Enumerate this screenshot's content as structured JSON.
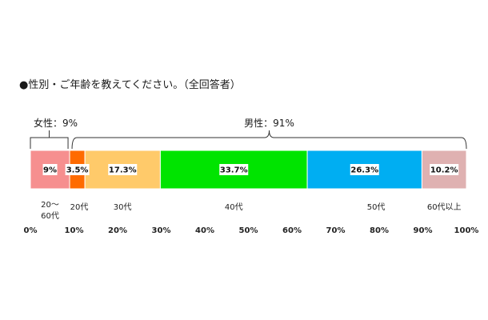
{
  "chart_data": {
    "type": "bar",
    "orientation": "horizontal-stacked",
    "title": "●性別・ご年齢を教えてください。（全回答者）",
    "groups": [
      {
        "label": "女性：9%",
        "from": 0,
        "to": 9
      },
      {
        "label": "男性：91%",
        "from": 9,
        "to": 100
      }
    ],
    "segments": [
      {
        "category": "20～60代",
        "value": 9,
        "label": "9%",
        "color": "#f68f8f"
      },
      {
        "category": "20代",
        "value": 3.5,
        "label": "3.5%",
        "color": "#ff6b00"
      },
      {
        "category": "30代",
        "value": 17.3,
        "label": "17.3%",
        "color": "#ffca6a"
      },
      {
        "category": "40代",
        "value": 33.7,
        "label": "33.7%",
        "color": "#00e400"
      },
      {
        "category": "50代",
        "value": 26.3,
        "label": "26.3%",
        "color": "#00aef2"
      },
      {
        "category": "60代以上",
        "value": 10.2,
        "label": "10.2%",
        "color": "#dfb1b1"
      }
    ],
    "xlim": [
      0,
      100
    ],
    "xticks": [
      "0%",
      "10%",
      "20%",
      "30%",
      "40%",
      "50%",
      "60%",
      "70%",
      "80%",
      "90%",
      "100%"
    ],
    "grid": false,
    "legend": "none"
  }
}
